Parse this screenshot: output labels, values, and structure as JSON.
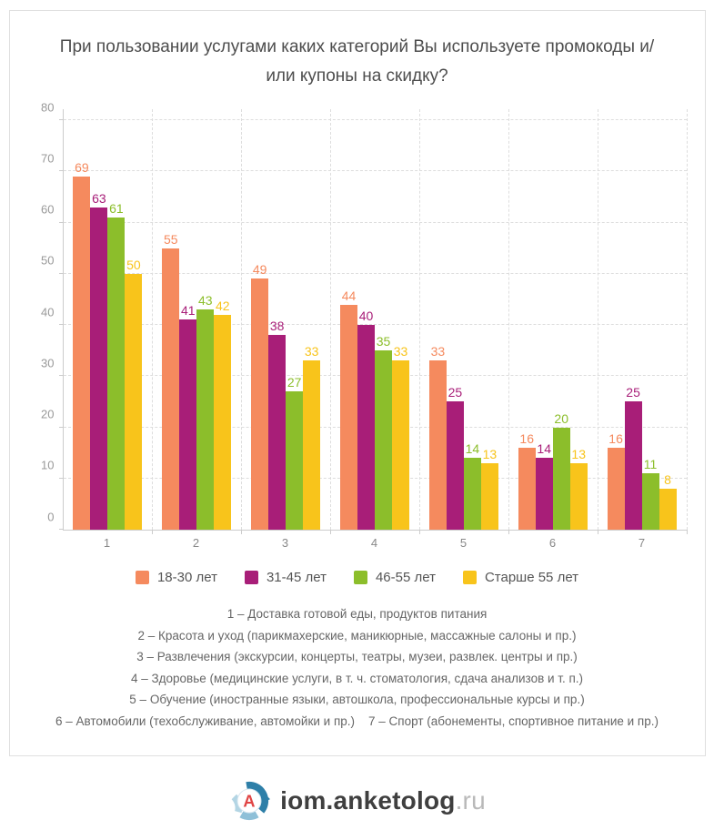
{
  "title": {
    "line1": "При пользовании услугами каких категорий Вы используете промокоды и/",
    "line2": "или купоны на скидку?"
  },
  "chart_data": {
    "type": "bar",
    "categories": [
      "1",
      "2",
      "3",
      "4",
      "5",
      "6",
      "7"
    ],
    "series": [
      {
        "name": "18-30 лет",
        "color": "#F58A5E",
        "values": [
          69,
          55,
          49,
          44,
          33,
          16,
          16
        ]
      },
      {
        "name": "31-45 лет",
        "color": "#A81E78",
        "values": [
          63,
          41,
          38,
          40,
          25,
          14,
          25
        ]
      },
      {
        "name": "46-55 лет",
        "color": "#8CBE2B",
        "values": [
          61,
          43,
          27,
          35,
          14,
          20,
          11
        ]
      },
      {
        "name": "Старше 55 лет",
        "color": "#F8C41B",
        "values": [
          50,
          42,
          33,
          33,
          13,
          13,
          8
        ]
      }
    ],
    "ylim": [
      0,
      80
    ],
    "ytick_step": 10,
    "grid": "dashed",
    "legend_position": "bottom",
    "value_labels": true
  },
  "footnotes": [
    "1 – Доставка готовой еды, продуктов питания",
    "2 – Красота и уход (парикмахерские, маникюрные, массажные салоны и пр.)",
    "3 – Развлечения (экскурсии, концерты, театры, музеи, развлек. центры и пр.)",
    "4 – Здоровье (медицинские услуги, в т. ч. стоматология, сдача анализов и т. п.)",
    "5 – Обучение (иностранные языки, автошкола, профессиональные курсы и пр.)",
    "6 – Автомобили (техобслуживание, автомойки и пр.)    7 – Спорт (абонементы, спортивное питание и пр.)"
  ],
  "footer": {
    "brand_main": "iom.anketolog",
    "brand_suffix": ".ru",
    "logo_letter": "A",
    "logo_colors": {
      "arc_dark": "#2E7FA8",
      "arc_medium": "#8FC0D8",
      "arc_light": "#B3D5E4",
      "letter": "#E04444",
      "inner_ring": "#D6E6F0"
    }
  }
}
